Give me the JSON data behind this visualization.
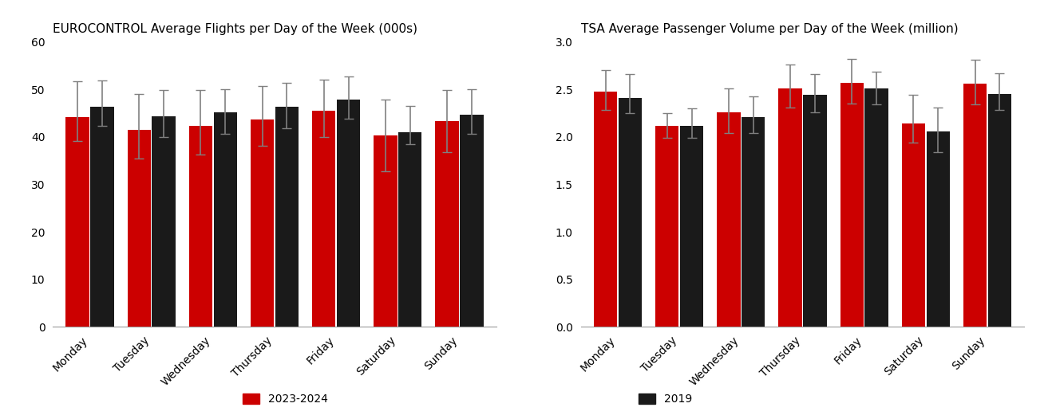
{
  "euro_title": "EUROCONTROL Average Flights per Day of the Week (000s)",
  "tsa_title": "TSA Average Passenger Volume per Day of the Week (million)",
  "days": [
    "Monday",
    "Tuesday",
    "Wednesday",
    "Thursday",
    "Friday",
    "Saturday",
    "Sunday"
  ],
  "euro_red_values": [
    44.2,
    41.5,
    42.3,
    43.7,
    45.5,
    40.3,
    43.3
  ],
  "euro_black_values": [
    46.3,
    44.4,
    45.1,
    46.4,
    47.8,
    41.0,
    44.6
  ],
  "euro_red_err_lo": [
    5.0,
    6.0,
    6.0,
    5.5,
    5.5,
    7.5,
    6.5
  ],
  "euro_red_err_hi": [
    7.5,
    7.5,
    7.5,
    7.0,
    6.5,
    7.5,
    6.5
  ],
  "euro_black_err_lo": [
    4.0,
    4.5,
    4.5,
    4.5,
    4.0,
    2.5,
    4.0
  ],
  "euro_black_err_hi": [
    5.5,
    5.5,
    5.0,
    5.0,
    5.0,
    5.5,
    5.5
  ],
  "tsa_red_values": [
    2.48,
    2.12,
    2.26,
    2.51,
    2.57,
    2.14,
    2.56
  ],
  "tsa_black_values": [
    2.41,
    2.12,
    2.21,
    2.44,
    2.51,
    2.06,
    2.45
  ],
  "tsa_red_err_lo": [
    0.2,
    0.13,
    0.22,
    0.2,
    0.22,
    0.2,
    0.22
  ],
  "tsa_red_err_hi": [
    0.22,
    0.13,
    0.25,
    0.25,
    0.25,
    0.3,
    0.25
  ],
  "tsa_black_err_lo": [
    0.16,
    0.13,
    0.17,
    0.18,
    0.17,
    0.22,
    0.17
  ],
  "tsa_black_err_hi": [
    0.25,
    0.18,
    0.22,
    0.22,
    0.18,
    0.25,
    0.22
  ],
  "color_red": "#CC0000",
  "color_black": "#1a1a1a",
  "color_err": "#808080",
  "legend_red_label": "2023-2024",
  "legend_black_label": "2019",
  "background_color": "#ffffff",
  "euro_ylim": [
    0,
    60
  ],
  "euro_yticks": [
    0,
    10,
    20,
    30,
    40,
    50,
    60
  ],
  "tsa_ylim": [
    0.0,
    3.0
  ],
  "tsa_yticks": [
    0.0,
    0.5,
    1.0,
    1.5,
    2.0,
    2.5,
    3.0
  ]
}
